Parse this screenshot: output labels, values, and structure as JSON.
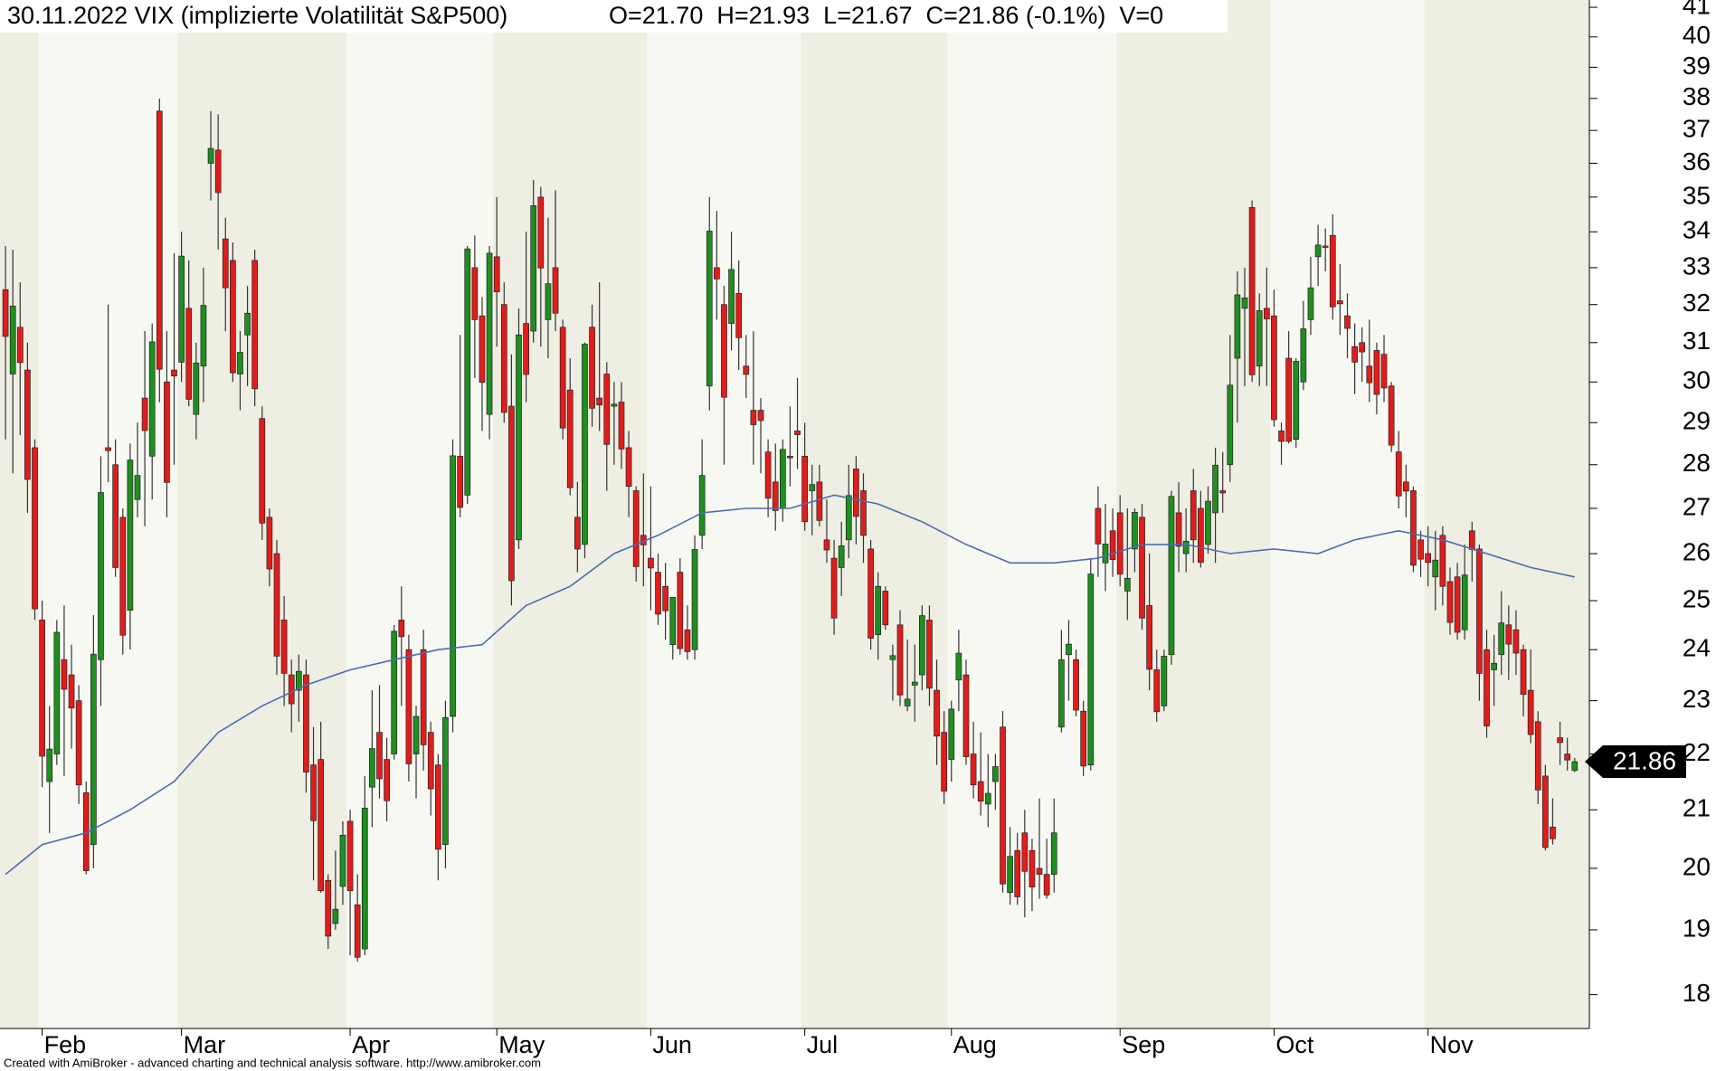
{
  "chart_data": {
    "type": "candlestick",
    "title": "30.11.2022 VIX (implizierte Volatilität S&P500)",
    "subtitle": "O=21.70  H=21.93  L=21.67  C=21.86 (-0.1%)  V=0",
    "open": [
      32.4,
      30.2,
      31.4,
      30.3,
      28.4,
      24.6,
      21.5,
      22.0,
      23.8,
      23.5,
      23.0,
      21.3,
      20.4,
      23.8,
      28.4,
      28.0,
      26.8,
      24.8,
      27.2,
      29.6,
      28.2,
      37.6,
      30.0,
      30.3,
      30.5,
      31.9,
      29.2,
      30.4,
      36.0,
      36.4,
      33.8,
      33.2,
      30.2,
      31.2,
      33.2,
      29.1,
      26.8,
      26.0,
      24.6,
      23.5,
      23.2,
      23.5,
      21.8,
      21.9,
      19.8,
      19.1,
      19.7,
      20.8,
      19.4,
      18.7,
      21.4,
      22.4,
      21.9,
      22.0,
      24.6,
      24.0,
      22.0,
      24.0,
      22.4,
      21.8,
      20.4,
      22.7,
      28.2,
      27.3,
      33.0,
      31.7,
      29.2,
      33.3,
      32.0,
      29.4,
      26.3,
      31.5,
      31.3,
      35.0,
      31.6,
      33.0,
      31.4,
      29.8,
      26.8,
      26.2,
      31.4,
      29.6,
      30.2,
      29.4,
      29.5,
      28.4,
      27.4,
      26.4,
      25.9,
      25.6,
      25.3,
      24.1,
      25.6,
      24.4,
      24.0,
      26.4,
      29.9,
      33.0,
      32.0,
      31.5,
      32.3,
      30.4,
      29.3,
      29.3,
      28.3,
      27.6,
      27.0,
      28.2,
      28.8,
      28.2,
      27.4,
      27.6,
      26.3,
      25.9,
      25.7,
      26.3,
      27.9,
      27.4,
      26.1,
      24.3,
      25.2,
      23.8,
      24.5,
      22.9,
      23.3,
      23.5,
      24.6,
      23.2,
      22.4,
      21.9,
      23.4,
      23.5,
      22.0,
      21.5,
      21.1,
      21.5,
      22.5,
      19.6,
      20.3,
      20.6,
      20.3,
      20.0,
      19.9,
      19.9,
      22.5,
      23.9,
      23.8,
      22.8,
      21.8,
      27.0,
      25.8,
      26.5,
      26.9,
      25.2,
      26.1,
      26.8,
      24.9,
      23.6,
      22.9,
      23.9,
      26.9,
      26.0,
      27.4,
      27.0,
      26.2,
      26.9,
      27.4,
      28.0,
      30.6,
      31.9,
      34.7,
      30.4,
      31.9,
      31.7,
      28.8,
      30.6,
      28.6,
      30.0,
      31.6,
      33.3,
      33.6,
      33.9,
      32.1,
      31.7,
      30.9,
      31.0,
      30.4,
      30.8,
      30.7,
      29.9,
      28.3,
      27.6,
      27.4,
      26.3,
      26.0,
      25.5,
      26.4,
      25.4,
      25.5,
      24.4,
      26.5,
      26.1,
      24.0,
      23.6,
      23.9,
      24.5,
      24.4,
      24.0,
      23.2,
      22.6,
      21.6,
      20.7,
      22.3,
      22.0,
      21.7
    ],
    "high": [
      33.6,
      33.5,
      32.6,
      31.0,
      28.6,
      25.0,
      22.9,
      24.6,
      24.9,
      24.1,
      23.3,
      21.5,
      24.7,
      28.2,
      32.0,
      28.6,
      27.0,
      28.5,
      29.0,
      31.3,
      31.5,
      38.0,
      31.3,
      33.4,
      34.0,
      33.2,
      31.0,
      33.0,
      37.6,
      37.5,
      34.4,
      33.7,
      31.3,
      32.5,
      33.5,
      29.4,
      27.0,
      26.3,
      25.1,
      23.8,
      23.9,
      23.8,
      22.5,
      22.6,
      19.9,
      20.3,
      20.8,
      21.0,
      19.9,
      21.6,
      23.2,
      23.3,
      22.3,
      24.5,
      25.3,
      24.3,
      22.9,
      24.4,
      22.6,
      22.0,
      23.0,
      28.6,
      31.2,
      33.6,
      33.9,
      32.2,
      33.6,
      35.0,
      32.6,
      30.7,
      31.9,
      34.0,
      35.5,
      35.3,
      34.4,
      35.2,
      31.6,
      30.6,
      27.6,
      31.0,
      32.0,
      32.6,
      30.5,
      30.0,
      30.0,
      28.8,
      27.5,
      27.8,
      27.5,
      26.0,
      25.8,
      25.0,
      25.9,
      24.9,
      26.4,
      28.6,
      35.0,
      34.6,
      32.5,
      34.0,
      33.2,
      31.2,
      31.3,
      29.6,
      28.6,
      28.5,
      28.6,
      29.4,
      30.1,
      29.0,
      28.0,
      28.0,
      27.2,
      26.3,
      26.7,
      28.0,
      28.2,
      27.8,
      26.3,
      25.6,
      25.3,
      24.1,
      24.8,
      24.2,
      24.1,
      24.9,
      24.9,
      23.8,
      22.8,
      23.0,
      24.4,
      23.8,
      22.6,
      22.4,
      22.0,
      22.0,
      22.8,
      20.7,
      20.6,
      21.0,
      20.5,
      21.2,
      20.5,
      21.2,
      24.4,
      24.6,
      24.0,
      23.0,
      25.9,
      27.5,
      27.1,
      27.0,
      27.3,
      27.0,
      27.0,
      27.1,
      26.0,
      24.0,
      24.0,
      27.4,
      27.6,
      27.0,
      27.9,
      27.4,
      27.5,
      28.4,
      28.3,
      31.2,
      32.9,
      33.0,
      34.9,
      32.3,
      33.0,
      32.4,
      29.0,
      31.3,
      30.6,
      32.1,
      33.3,
      34.2,
      34.1,
      34.5,
      33.1,
      32.3,
      31.5,
      31.4,
      31.6,
      31.0,
      31.2,
      30.0,
      28.8,
      28.0,
      27.5,
      26.5,
      26.6,
      26.5,
      26.6,
      25.7,
      25.8,
      26.2,
      26.7,
      26.2,
      24.4,
      24.3,
      25.2,
      24.9,
      24.8,
      24.1,
      24.0,
      22.8,
      21.8,
      21.2,
      22.6,
      22.3,
      21.93
    ],
    "low": [
      28.6,
      27.8,
      28.7,
      26.9,
      24.6,
      21.4,
      20.6,
      21.8,
      21.6,
      22.1,
      21.1,
      19.9,
      20.0,
      22.9,
      27.6,
      25.5,
      23.9,
      24.0,
      26.8,
      26.6,
      27.2,
      29.5,
      26.8,
      28.0,
      30.0,
      29.4,
      28.6,
      29.5,
      34.9,
      33.5,
      31.3,
      30.0,
      29.3,
      29.9,
      29.4,
      26.3,
      25.3,
      23.5,
      22.9,
      22.4,
      22.6,
      21.3,
      19.8,
      19.6,
      18.7,
      19.0,
      19.4,
      18.6,
      18.5,
      18.6,
      20.7,
      21.2,
      20.8,
      21.9,
      22.9,
      21.5,
      21.2,
      21.7,
      20.9,
      19.8,
      20.0,
      22.4,
      26.8,
      27.1,
      30.1,
      28.8,
      28.6,
      30.9,
      29.0,
      24.9,
      26.1,
      29.5,
      31.0,
      30.9,
      30.6,
      31.3,
      28.6,
      27.3,
      25.6,
      25.9,
      28.9,
      28.8,
      27.4,
      28.0,
      27.9,
      26.8,
      25.4,
      25.3,
      24.8,
      24.5,
      24.2,
      23.8,
      23.9,
      23.8,
      23.8,
      26.1,
      29.3,
      31.6,
      28.0,
      30.8,
      30.3,
      29.6,
      28.0,
      27.8,
      26.8,
      26.5,
      26.7,
      27.5,
      27.9,
      26.5,
      26.4,
      26.6,
      25.8,
      24.3,
      25.1,
      25.9,
      26.2,
      25.8,
      24.0,
      23.8,
      24.4,
      23.0,
      22.9,
      22.8,
      22.6,
      23.2,
      22.9,
      21.8,
      21.1,
      21.5,
      22.8,
      21.8,
      21.2,
      20.9,
      20.7,
      21.0,
      19.6,
      19.4,
      19.4,
      19.2,
      19.3,
      19.5,
      19.5,
      19.6,
      22.4,
      23.0,
      22.7,
      21.6,
      21.7,
      25.5,
      25.2,
      25.5,
      25.3,
      24.6,
      25.6,
      24.4,
      23.2,
      22.6,
      22.8,
      23.7,
      25.6,
      25.6,
      25.8,
      25.7,
      26.0,
      25.8,
      26.9,
      27.6,
      29.0,
      29.9,
      30.0,
      29.9,
      29.9,
      28.9,
      28.0,
      28.5,
      28.4,
      29.8,
      31.2,
      32.5,
      32.9,
      31.6,
      31.2,
      30.6,
      29.7,
      30.0,
      29.5,
      29.2,
      29.5,
      28.3,
      27.0,
      26.8,
      25.6,
      25.5,
      25.3,
      24.8,
      24.9,
      24.3,
      24.2,
      24.2,
      25.4,
      23.0,
      22.3,
      22.9,
      23.5,
      23.4,
      23.5,
      22.7,
      22.2,
      21.1,
      20.3,
      20.4,
      21.8,
      21.7,
      21.67
    ],
    "close": [
      31.16,
      31.96,
      30.49,
      27.66,
      24.83,
      21.96,
      22.09,
      24.35,
      23.22,
      22.86,
      21.44,
      19.96,
      23.91,
      27.36,
      28.33,
      25.7,
      24.29,
      28.11,
      27.75,
      28.81,
      31.02,
      30.32,
      27.59,
      30.15,
      33.32,
      29.57,
      30.48,
      31.98,
      36.45,
      35.13,
      32.45,
      30.23,
      30.75,
      31.77,
      29.83,
      26.67,
      25.67,
      23.87,
      23.53,
      22.94,
      23.57,
      21.67,
      20.81,
      19.63,
      18.9,
      19.33,
      20.56,
      19.63,
      18.57,
      21.03,
      22.1,
      21.55,
      21.16,
      24.37,
      24.26,
      21.82,
      22.7,
      22.17,
      21.37,
      20.32,
      22.68,
      28.21,
      27.02,
      33.52,
      31.6,
      29.99,
      33.4,
      32.34,
      29.25,
      25.42,
      31.2,
      30.19,
      34.75,
      32.99,
      32.56,
      31.77,
      28.87,
      27.47,
      26.1,
      30.96,
      29.35,
      29.43,
      28.48,
      29.45,
      28.37,
      27.5,
      25.72,
      26.19,
      25.69,
      24.72,
      24.79,
      25.07,
      24.02,
      23.96,
      26.09,
      27.75,
      34.02,
      32.69,
      29.62,
      32.95,
      31.13,
      30.19,
      28.95,
      29.05,
      27.23,
      26.95,
      28.36,
      28.16,
      28.71,
      26.7,
      27.54,
      26.73,
      26.08,
      24.64,
      26.17,
      27.29,
      26.82,
      26.4,
      24.23,
      25.3,
      24.5,
      23.88,
      23.11,
      23.03,
      23.36,
      24.69,
      23.24,
      22.33,
      21.33,
      22.84,
      23.93,
      21.95,
      21.44,
      21.15,
      21.29,
      21.77,
      19.74,
      20.2,
      19.53,
      19.95,
      19.69,
      19.9,
      19.56,
      20.6,
      23.8,
      24.11,
      22.82,
      21.78,
      25.56,
      26.21,
      26.21,
      25.87,
      25.56,
      25.47,
      26.91,
      24.64,
      23.61,
      22.79,
      23.87,
      27.27,
      26.16,
      26.27,
      26.3,
      25.81,
      27.16,
      27.99,
      27.35,
      29.92,
      32.26,
      32.18,
      30.18,
      31.84,
      31.62,
      29.07,
      28.55,
      28.55,
      30.52,
      31.36,
      32.45,
      33.63,
      33.57,
      31.94,
      32.02,
      31.37,
      30.5,
      30.76,
      29.98,
      29.69,
      29.85,
      28.46,
      27.28,
      27.39,
      25.75,
      25.88,
      25.81,
      25.86,
      25.3,
      24.55,
      24.35,
      25.54,
      26.09,
      23.53,
      22.52,
      23.73,
      24.54,
      24.11,
      23.93,
      23.12,
      22.36,
      21.35,
      20.35,
      20.5,
      22.21,
      21.89,
      21.86
    ],
    "colors": {
      "up": "#1f8f1f",
      "down": "#e11d1b"
    },
    "ma": {
      "color": "#4a6db3",
      "x": [
        0,
        5,
        11,
        17,
        23,
        29,
        35,
        41,
        47,
        53,
        59,
        65,
        71,
        77,
        83,
        89,
        95,
        101,
        107,
        113,
        119,
        125,
        131,
        137,
        143,
        149,
        155,
        161,
        167,
        173,
        179,
        184,
        190,
        196,
        202,
        208,
        214
      ],
      "values": [
        19.9,
        20.4,
        20.6,
        21.0,
        21.5,
        22.4,
        22.9,
        23.3,
        23.6,
        23.8,
        24.0,
        24.1,
        24.9,
        25.3,
        26.0,
        26.4,
        26.9,
        27.0,
        27.0,
        27.3,
        27.1,
        26.7,
        26.2,
        25.8,
        25.8,
        25.9,
        26.2,
        26.2,
        26.0,
        26.1,
        26.0,
        26.3,
        26.5,
        26.3,
        26.0,
        25.7,
        25.5
      ]
    },
    "xlim": [
      -0.75,
      216
    ],
    "xticks": [
      {
        "value": 5,
        "label": "Feb"
      },
      {
        "value": 24,
        "label": "Mar"
      },
      {
        "value": 47,
        "label": "Apr"
      },
      {
        "value": 67,
        "label": "May"
      },
      {
        "value": 88,
        "label": "Jun"
      },
      {
        "value": 109,
        "label": "Jul"
      },
      {
        "value": 129,
        "label": "Aug"
      },
      {
        "value": 152,
        "label": "Sep"
      },
      {
        "value": 173,
        "label": "Oct"
      },
      {
        "value": 194,
        "label": "Nov"
      }
    ],
    "ylim": [
      17.5,
      41.25
    ],
    "yticks": [
      18,
      19,
      20,
      21,
      22,
      23,
      24,
      25,
      26,
      27,
      28,
      29,
      30,
      31,
      32,
      33,
      34,
      35,
      36,
      37,
      38,
      39,
      40,
      41
    ],
    "log_scale": true
  },
  "footer": "Created with AmiBroker - advanced charting and technical analysis software. http://www.amibroker.com"
}
